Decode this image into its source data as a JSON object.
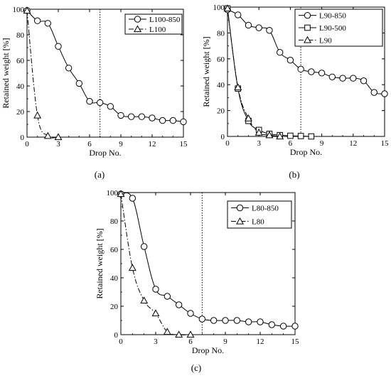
{
  "chart_data": [
    {
      "type": "line",
      "panel_label": "(a)",
      "xlabel": "Drop No.",
      "ylabel": "Retained weight [%]",
      "xlim": [
        0,
        15
      ],
      "ylim": [
        0,
        100
      ],
      "xticks": [
        0,
        3,
        6,
        9,
        12,
        15
      ],
      "yticks": [
        0,
        20,
        40,
        60,
        80,
        100
      ],
      "vline_x": 7,
      "legend_position": "top-right",
      "series": [
        {
          "name": "L100-850",
          "marker": "circle",
          "line": "solid",
          "x": [
            0,
            1,
            2,
            3,
            4,
            5,
            6,
            7,
            8,
            9,
            10,
            11,
            12,
            13,
            14,
            15
          ],
          "y": [
            99,
            91,
            89,
            71,
            54,
            42,
            28,
            27,
            24,
            17,
            16,
            16,
            15,
            13,
            13,
            12
          ]
        },
        {
          "name": "L100",
          "marker": "triangle",
          "line": "dashdot",
          "x": [
            0,
            1,
            2,
            3
          ],
          "y": [
            99,
            17,
            1,
            0
          ]
        }
      ]
    },
    {
      "type": "line",
      "panel_label": "(b)",
      "xlabel": "Drop No.",
      "ylabel": "Retained weight [%]",
      "xlim": [
        0,
        15
      ],
      "ylim": [
        0,
        100
      ],
      "xticks": [
        0,
        3,
        6,
        9,
        12,
        15
      ],
      "yticks": [
        0,
        20,
        40,
        60,
        80,
        100
      ],
      "vline_x": 7,
      "legend_position": "top-right",
      "series": [
        {
          "name": "L90-850",
          "marker": "circle",
          "line": "solid",
          "x": [
            0,
            1,
            2,
            3,
            4,
            5,
            6,
            7,
            8,
            9,
            10,
            11,
            12,
            13,
            14,
            15
          ],
          "y": [
            98,
            94,
            86,
            84,
            82,
            65,
            59,
            52,
            50,
            49,
            46,
            45,
            45,
            43,
            34,
            33
          ]
        },
        {
          "name": "L90-500",
          "marker": "square",
          "line": "solid",
          "x": [
            0,
            1,
            2,
            3,
            4,
            5,
            6,
            7,
            8
          ],
          "y": [
            99,
            37,
            12,
            5,
            2,
            1,
            0.5,
            0.3,
            0
          ]
        },
        {
          "name": "L90",
          "marker": "triangle",
          "line": "dashdot",
          "x": [
            0,
            1,
            2,
            3,
            4,
            5
          ],
          "y": [
            99,
            38,
            14,
            3,
            1,
            0
          ]
        }
      ]
    },
    {
      "type": "line",
      "panel_label": "(c)",
      "xlabel": "Drop No.",
      "ylabel": "Retained weight [%]",
      "xlim": [
        0,
        15
      ],
      "ylim": [
        0,
        100
      ],
      "xticks": [
        0,
        3,
        6,
        9,
        12,
        15
      ],
      "yticks": [
        0,
        20,
        40,
        60,
        80,
        100
      ],
      "vline_x": 7,
      "legend_position": "top-right",
      "series": [
        {
          "name": "L80-850",
          "marker": "circle",
          "line": "solid",
          "x": [
            0,
            1,
            2,
            3,
            4,
            5,
            6,
            7,
            8,
            9,
            10,
            11,
            12,
            13,
            14,
            15
          ],
          "y": [
            99,
            96,
            62,
            32,
            27,
            21,
            15,
            11,
            10,
            10,
            10,
            9,
            9,
            7,
            6,
            6
          ]
        },
        {
          "name": "L80",
          "marker": "triangle",
          "line": "dashdot",
          "x": [
            0,
            1,
            2,
            3,
            4,
            5,
            6
          ],
          "y": [
            99,
            47,
            24,
            15,
            2,
            0,
            0
          ]
        }
      ]
    }
  ]
}
